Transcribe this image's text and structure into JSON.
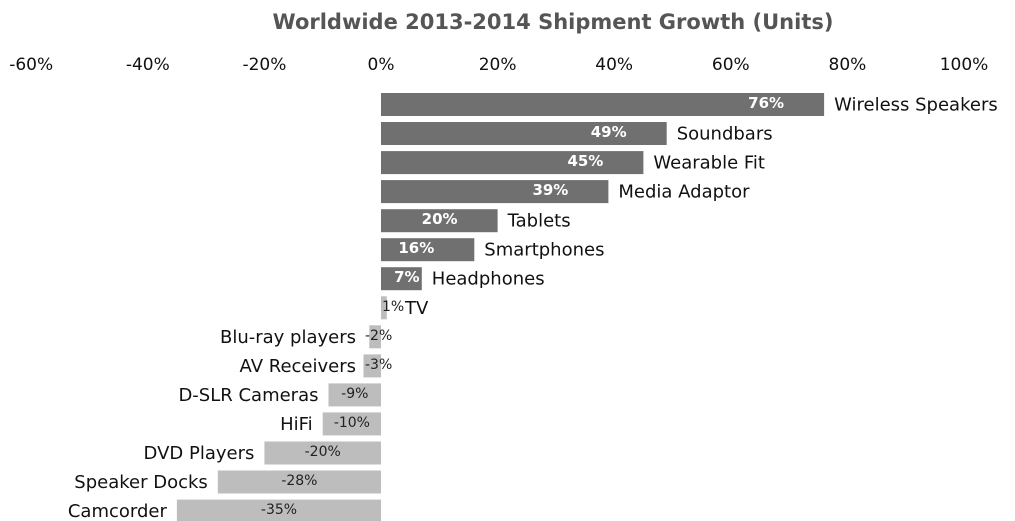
{
  "chart_data": {
    "type": "bar",
    "orientation": "horizontal",
    "title": "Worldwide 2013-2014 Shipment Growth (Units)",
    "xlabel": "",
    "ylabel": "",
    "xlim": [
      -60,
      100
    ],
    "x_ticks": [
      "-60%",
      "-40%",
      "-20%",
      "0%",
      "20%",
      "40%",
      "60%",
      "80%",
      "100%"
    ],
    "x_axis_position": "top",
    "grid": false,
    "legend": "none",
    "categories": [
      "Wireless Speakers",
      "Soundbars",
      "Wearable Fit",
      "Media Adaptor",
      "Tablets",
      "Smartphones",
      "Headphones",
      "TV",
      "Blu-ray players",
      "AV Receivers",
      "D-SLR Cameras",
      "HiFi",
      "DVD Players",
      "Speaker Docks",
      "Camcorder"
    ],
    "values": [
      76,
      49,
      45,
      39,
      20,
      16,
      7,
      1,
      -2,
      -3,
      -9,
      -10,
      -20,
      -28,
      -35
    ],
    "data_labels": [
      "76%",
      "49%",
      "45%",
      "39%",
      "20%",
      "16%",
      "7%",
      "1%",
      "-2%",
      "-3%",
      "-9%",
      "-10%",
      "-20%",
      "-28%",
      "-35%"
    ],
    "colors": {
      "high_growth": "#707070",
      "low_growth": "#bdbdbd",
      "title": "#555555"
    }
  }
}
